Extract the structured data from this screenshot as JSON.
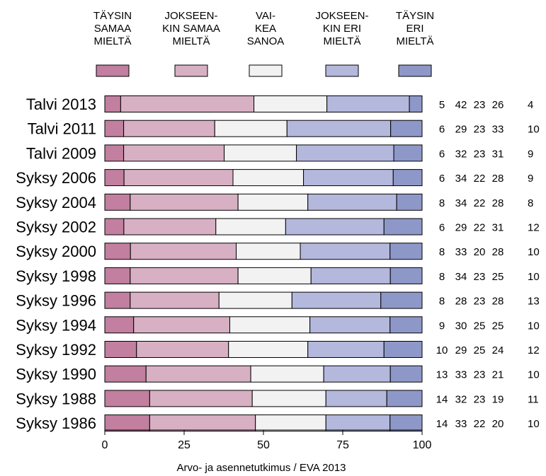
{
  "chart_data": {
    "type": "bar",
    "stacked": true,
    "orientation": "horizontal",
    "legend_placement": "top",
    "categories": [
      "Talvi 2013",
      "Talvi 2011",
      "Talvi 2009",
      "Syksy 2006",
      "Syksy 2004",
      "Syksy 2002",
      "Syksy 2000",
      "Syksy 1998",
      "Syksy 1996",
      "Syksy 1994",
      "Syksy 1992",
      "Syksy 1990",
      "Syksy 1988",
      "Syksy 1986"
    ],
    "series": [
      {
        "name": "TÄYSIN SAMAA MIELTÄ",
        "legend_lines": [
          "TÄYSIN",
          "SAMAA",
          "MIELTÄ"
        ],
        "color": "#c27f9f",
        "values": [
          5,
          6,
          6,
          6,
          8,
          6,
          8,
          8,
          8,
          9,
          10,
          13,
          14,
          14
        ]
      },
      {
        "name": "JOKSEEN-KIN SAMAA MIELTÄ",
        "legend_lines": [
          "JOKSEEN-",
          "KIN SAMAA",
          "MIELTÄ"
        ],
        "color": "#d8b0c3",
        "values": [
          42,
          29,
          32,
          34,
          34,
          29,
          33,
          34,
          28,
          30,
          29,
          33,
          32,
          33
        ]
      },
      {
        "name": "VAI-KEA SANOA",
        "legend_lines": [
          "VAI-",
          "KEA",
          "SANOA"
        ],
        "color": "#f2f2f2",
        "values": [
          23,
          23,
          23,
          22,
          22,
          22,
          20,
          23,
          23,
          25,
          25,
          23,
          23,
          22
        ]
      },
      {
        "name": "JOKSEEN-KIN ERI MIELTÄ",
        "legend_lines": [
          "JOKSEEN-",
          "KIN ERI",
          "MIELTÄ"
        ],
        "color": "#b3b8dc",
        "values": [
          26,
          33,
          31,
          28,
          28,
          31,
          28,
          25,
          28,
          25,
          24,
          21,
          19,
          20
        ]
      },
      {
        "name": "TÄYSIN ERI MIELTÄ",
        "legend_lines": [
          "TÄYSIN",
          "ERI",
          "MIELTÄ"
        ],
        "color": "#8e98c8",
        "values": [
          4,
          10,
          9,
          9,
          8,
          12,
          10,
          10,
          13,
          10,
          12,
          10,
          11,
          10
        ]
      }
    ],
    "xlim": [
      0,
      100
    ],
    "xticks": [
      0,
      25,
      50,
      75,
      100
    ],
    "grid": false,
    "source": "Arvo- ja asennetutkimus / EVA 2013"
  }
}
